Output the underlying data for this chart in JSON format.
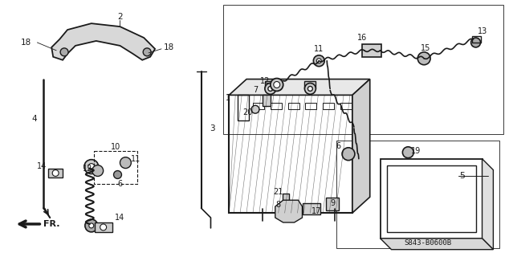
{
  "bg_color": "#ffffff",
  "line_color": "#1a1a1a",
  "diagram_code": "S843-B0600B"
}
